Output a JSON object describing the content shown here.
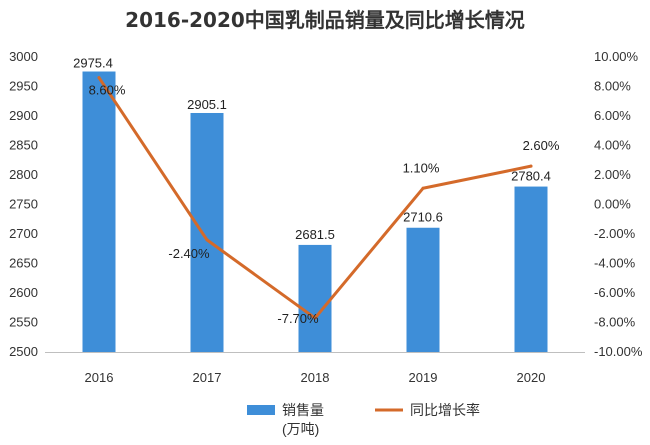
{
  "chart_data": {
    "type": "bar",
    "title": "2016-2020中国乳制品销量及同比增长情况",
    "categories": [
      "2016",
      "2017",
      "2018",
      "2019",
      "2020"
    ],
    "series": [
      {
        "name": "销售量(万吨)",
        "type": "bar",
        "axis": "left",
        "color": "#3e8ed8",
        "values": [
          2975.4,
          2905.1,
          2681.5,
          2710.6,
          2780.4
        ],
        "labels": [
          "2975.4",
          "2905.1",
          "2681.5",
          "2710.6",
          "2780.4"
        ]
      },
      {
        "name": "同比增长率",
        "type": "line",
        "axis": "right",
        "color": "#d46a2a",
        "values": [
          8.6,
          -2.4,
          -7.7,
          1.1,
          2.6
        ],
        "labels": [
          "8.60%",
          "-2.40%",
          "-7.70%",
          "1.10%",
          "2.60%"
        ]
      }
    ],
    "y_left": {
      "ylim": [
        2500,
        3000
      ],
      "ticks": [
        "2500",
        "2550",
        "2600",
        "2650",
        "2700",
        "2750",
        "2800",
        "2850",
        "2900",
        "2950",
        "3000"
      ]
    },
    "y_right": {
      "ylim": [
        -10,
        10
      ],
      "ticks": [
        "-10.00%",
        "-8.00%",
        "-6.00%",
        "-4.00%",
        "-2.00%",
        "0.00%",
        "2.00%",
        "4.00%",
        "6.00%",
        "8.00%",
        "10.00%"
      ]
    },
    "grid": false,
    "legend": {
      "position": "bottom",
      "items": [
        {
          "label_line1": "销售量",
          "label_line2": "(万吨)",
          "marker": "bar"
        },
        {
          "label_line1": "同比增长率",
          "marker": "line"
        }
      ]
    }
  }
}
